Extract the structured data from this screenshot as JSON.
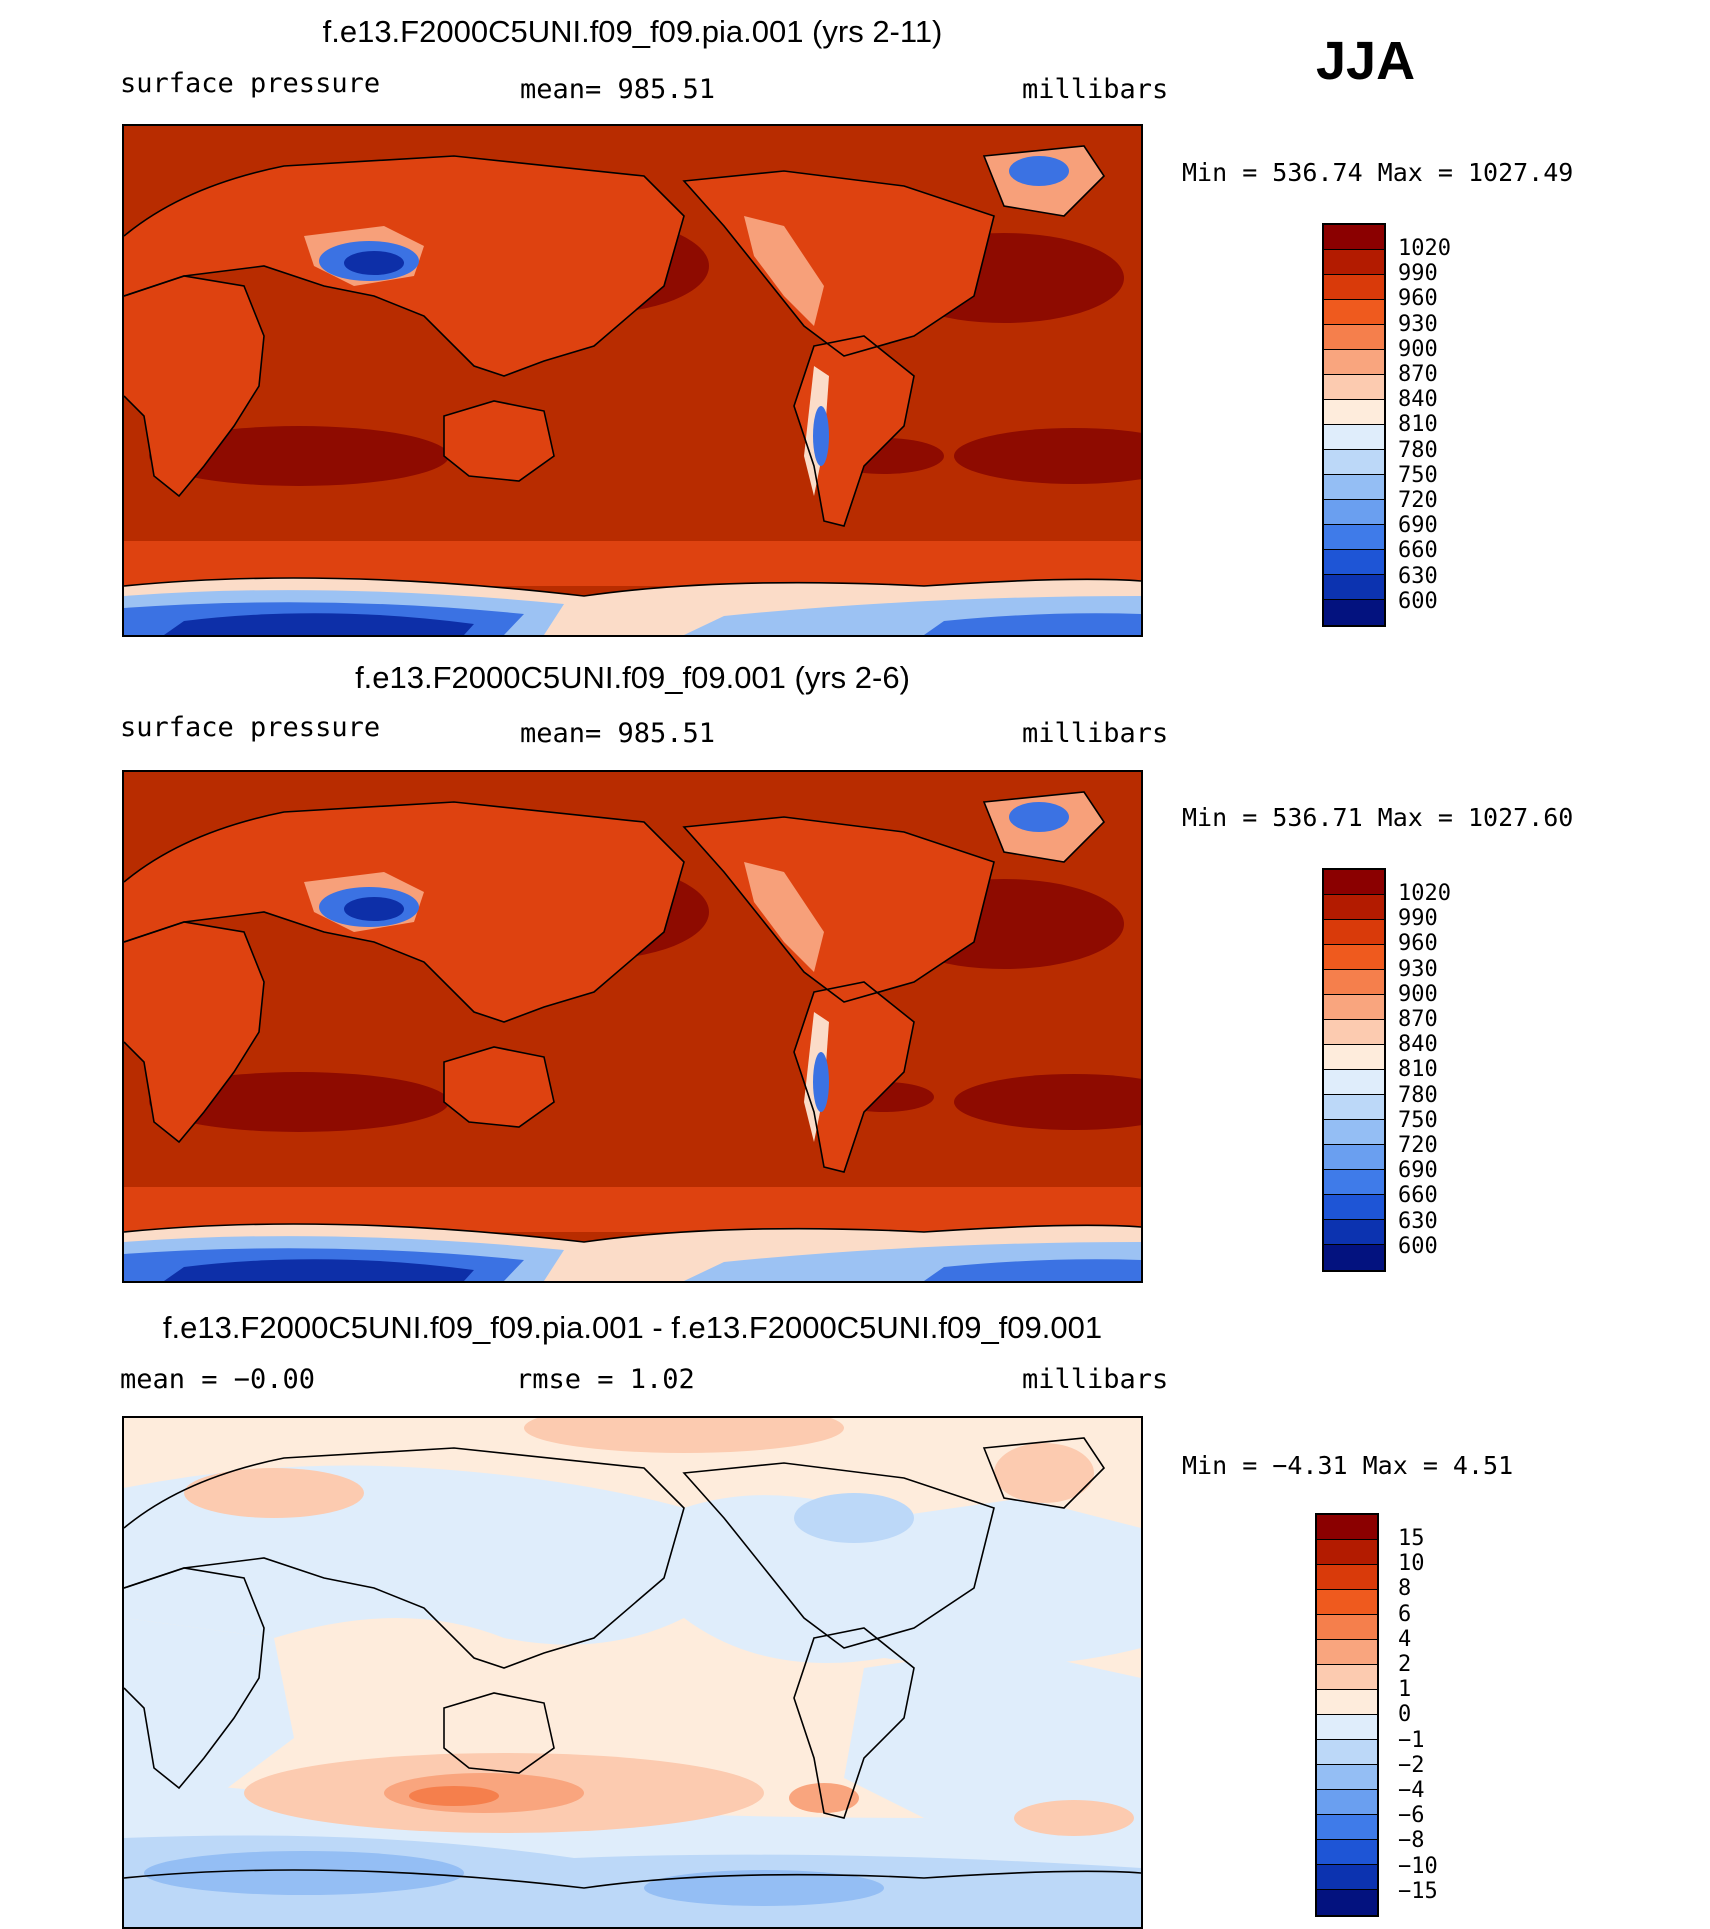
{
  "season": "JJA",
  "panels": [
    {
      "title": "f.e13.F2000C5UNI.f09_f09.pia.001 (yrs 2-11)",
      "left_label": "surface pressure",
      "center_label": "mean=  985.51",
      "right_label": "millibars",
      "minmax": "Min  =  536.74  Max  =  1027.49",
      "colorbar": {
        "labels": [
          "1020",
          "990",
          "960",
          "930",
          "900",
          "870",
          "840",
          "810",
          "780",
          "750",
          "720",
          "690",
          "660",
          "630",
          "600"
        ],
        "colors": [
          "#8b0000",
          "#b31b00",
          "#d93a0a",
          "#ef5a1e",
          "#f57f4c",
          "#f9a57e",
          "#fccbb0",
          "#feecdc",
          "#dfedfb",
          "#bcd8f8",
          "#94bef4",
          "#6a9ff0",
          "#3f7be9",
          "#1e55d6",
          "#0c33b0",
          "#03127f"
        ]
      },
      "map_colors": {
        "ocean": "#b82c00",
        "high": "#8e0b00",
        "land": "#de4210",
        "elev": "#f7a07a",
        "snow": "#fbdcc8",
        "ice_light": "#9cc2f3",
        "ice": "#3b72e3",
        "ice_deep": "#0d2fa8"
      }
    },
    {
      "title": "f.e13.F2000C5UNI.f09_f09.001 (yrs 2-6)",
      "left_label": "surface pressure",
      "center_label": "mean=  985.51",
      "right_label": "millibars",
      "minmax": "Min  =  536.71  Max  =  1027.60",
      "colorbar": {
        "labels": [
          "1020",
          "990",
          "960",
          "930",
          "900",
          "870",
          "840",
          "810",
          "780",
          "750",
          "720",
          "690",
          "660",
          "630",
          "600"
        ],
        "colors": [
          "#8b0000",
          "#b31b00",
          "#d93a0a",
          "#ef5a1e",
          "#f57f4c",
          "#f9a57e",
          "#fccbb0",
          "#feecdc",
          "#dfedfb",
          "#bcd8f8",
          "#94bef4",
          "#6a9ff0",
          "#3f7be9",
          "#1e55d6",
          "#0c33b0",
          "#03127f"
        ]
      },
      "map_colors": {
        "ocean": "#b82c00",
        "high": "#8e0b00",
        "land": "#de4210",
        "elev": "#f7a07a",
        "snow": "#fbdcc8",
        "ice_light": "#9cc2f3",
        "ice": "#3b72e3",
        "ice_deep": "#0d2fa8"
      }
    },
    {
      "title": "f.e13.F2000C5UNI.f09_f09.pia.001 - f.e13.F2000C5UNI.f09_f09.001",
      "left_label": "mean  =   −0.00",
      "center_label": "rmse  =     1.02",
      "right_label": "millibars",
      "minmax": "Min  =   −4.31  Max  =    4.51",
      "colorbar": {
        "labels": [
          "15",
          "10",
          "8",
          "6",
          "4",
          "2",
          "1",
          "0",
          "−1",
          "−2",
          "−4",
          "−6",
          "−8",
          "−10",
          "−15"
        ],
        "colors": [
          "#8b0000",
          "#b31b00",
          "#d93a0a",
          "#ef5a1e",
          "#f57f4c",
          "#f9a57e",
          "#fccbb0",
          "#feecdc",
          "#dfedfb",
          "#bcd8f8",
          "#94bef4",
          "#6a9ff0",
          "#3f7be9",
          "#1e55d6",
          "#0c33b0",
          "#03127f"
        ]
      },
      "map_colors": {
        "base": "#feecdc",
        "neg1": "#dfedfb",
        "neg2": "#bcd8f8",
        "neg4": "#94bef4",
        "pos1": "#fccbb0",
        "pos2": "#f9a57e",
        "pos4": "#f57f4c"
      }
    }
  ]
}
